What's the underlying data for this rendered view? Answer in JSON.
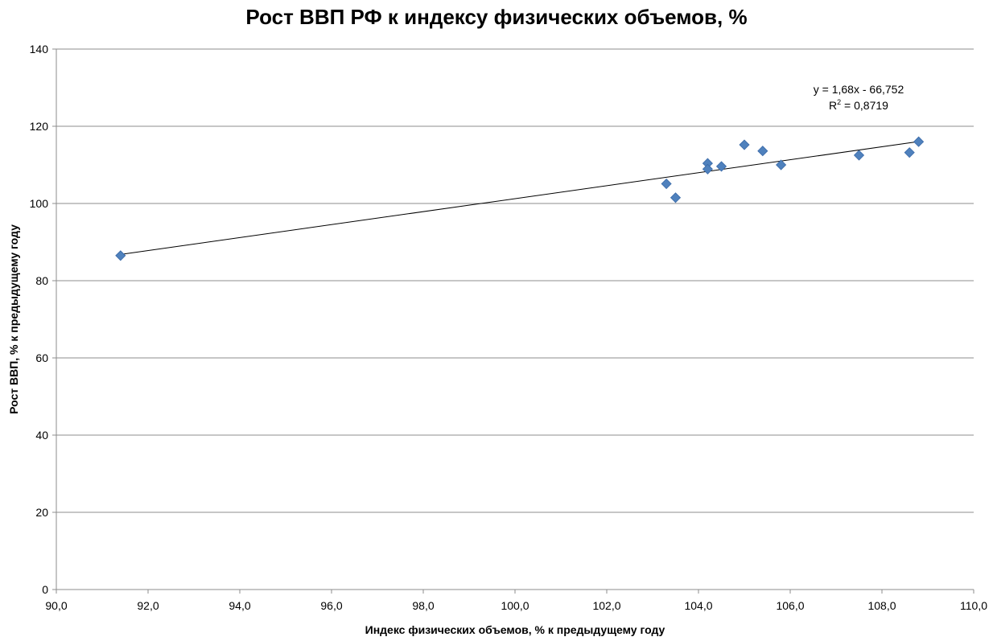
{
  "chart_data": {
    "type": "scatter",
    "title": "Рост ВВП РФ к индексу физических объемов, %",
    "xlabel": "Индекс физических объемов, % к предыдущему году",
    "ylabel": "Рост ВВП, % к предыдущему году",
    "xlim": [
      90,
      110
    ],
    "ylim": [
      0,
      140
    ],
    "x_ticks": [
      90,
      92,
      94,
      96,
      98,
      100,
      102,
      104,
      106,
      108,
      110
    ],
    "x_tick_labels": [
      "90,0",
      "92,0",
      "94,0",
      "96,0",
      "98,0",
      "100,0",
      "102,0",
      "104,0",
      "106,0",
      "108,0",
      "110,0"
    ],
    "y_ticks": [
      0,
      20,
      40,
      60,
      80,
      100,
      120,
      140
    ],
    "y_tick_labels": [
      "0",
      "20",
      "40",
      "60",
      "80",
      "100",
      "120",
      "140"
    ],
    "grid": "horizontal",
    "legend": "none",
    "marker_color": "#4f81bd",
    "series": [
      {
        "name": "Рост ВВП",
        "points": [
          {
            "x": 91.4,
            "y": 86.5
          },
          {
            "x": 103.3,
            "y": 105.1
          },
          {
            "x": 103.5,
            "y": 101.5
          },
          {
            "x": 104.2,
            "y": 110.4
          },
          {
            "x": 104.2,
            "y": 108.9
          },
          {
            "x": 104.5,
            "y": 109.6
          },
          {
            "x": 105.0,
            "y": 115.2
          },
          {
            "x": 105.4,
            "y": 113.6
          },
          {
            "x": 105.8,
            "y": 110.0
          },
          {
            "x": 107.5,
            "y": 112.5
          },
          {
            "x": 108.6,
            "y": 113.2
          },
          {
            "x": 108.8,
            "y": 116.0
          }
        ]
      }
    ],
    "trendline": {
      "slope": 1.68,
      "intercept": -66.752,
      "x_range": [
        91.4,
        108.8
      ],
      "equation_label": "y = 1,68x - 66,752",
      "r2_prefix": "R",
      "r2_sup": "2",
      "r2_value": " = 0,8719"
    }
  }
}
